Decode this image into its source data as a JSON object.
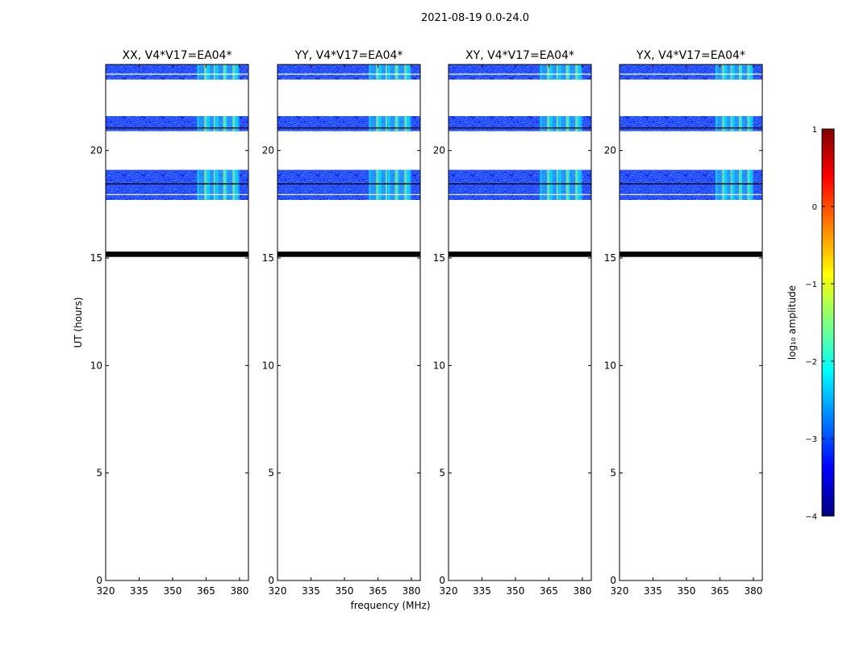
{
  "figure": {
    "suptitle": "2021-08-19 0.0-24.0",
    "xlabel": "frequency (MHz)",
    "ylabel": "UT (hours)"
  },
  "chart_data": {
    "type": "heatmap",
    "xlim": [
      320,
      384
    ],
    "ylim": [
      0,
      24
    ],
    "xticks": [
      320,
      335,
      350,
      365,
      380
    ],
    "yticks": [
      0,
      5,
      10,
      15,
      20
    ],
    "panels": [
      {
        "title": "XX, V4*V17=EA04*"
      },
      {
        "title": "YY, V4*V17=EA04*"
      },
      {
        "title": "XY, V4*V17=EA04*"
      },
      {
        "title": "YX, V4*V17=EA04*"
      }
    ],
    "data_blocks_hours": [
      [
        17.7,
        19.1
      ],
      [
        20.9,
        21.6
      ],
      [
        23.3,
        24.0
      ]
    ],
    "blank_line_hours": [
      17.95,
      23.55
    ],
    "dark_line_hours": [
      18.45,
      21.05
    ],
    "flag_band_hours": [
      15.05,
      15.3
    ],
    "rfi_band_mhz": [
      361,
      380
    ],
    "colorbar": {
      "label": "log₁₀ amplitude",
      "range": [
        -4,
        1
      ],
      "ticks": [
        1,
        0,
        -1,
        -2,
        -3,
        -4
      ],
      "colormap": [
        "#00007f",
        "#0000ff",
        "#007fff",
        "#00ffff",
        "#7fff7f",
        "#ffff00",
        "#ff7f00",
        "#ff0000",
        "#7f0000"
      ]
    }
  }
}
